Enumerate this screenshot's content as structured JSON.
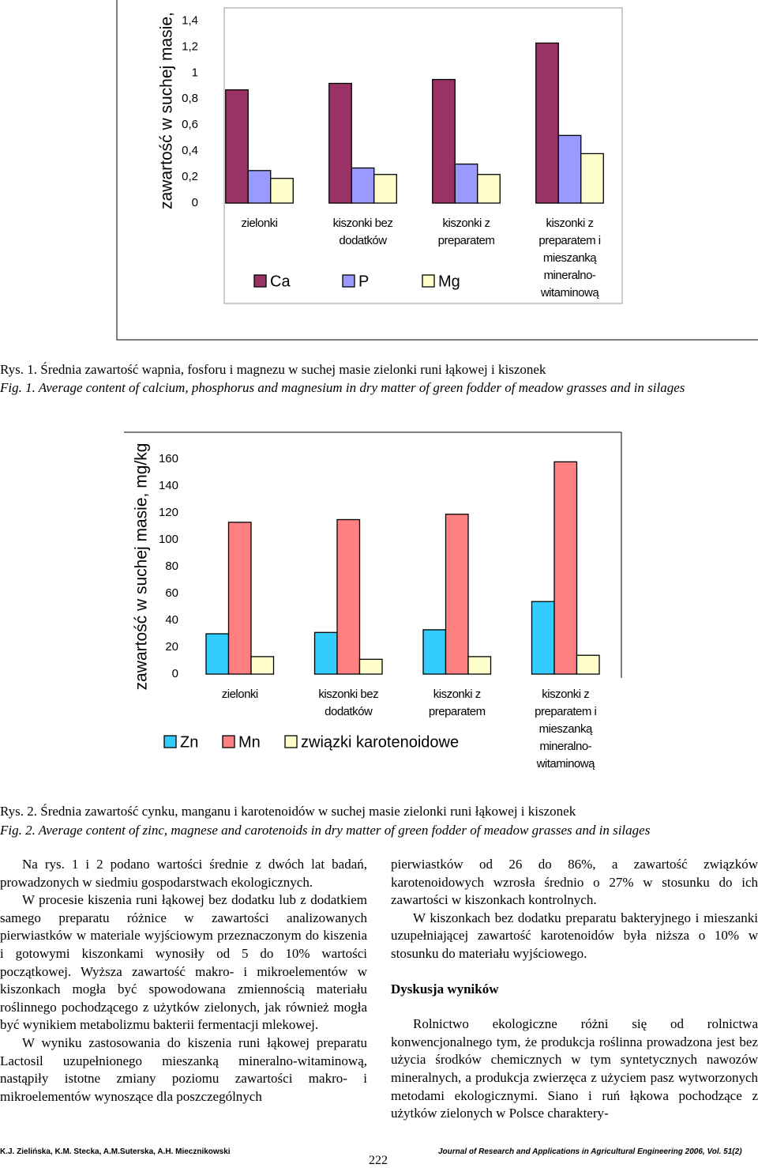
{
  "chart_data": [
    {
      "type": "bar",
      "y_label": "zawartość w suchej masie,",
      "categories": [
        "zielonki",
        "kiszonki bez dodatków",
        "kiszonki z preparatem",
        "kiszonki z preparatem i mieszanką mineralno-witaminową"
      ],
      "series": [
        {
          "name": "Ca",
          "color": "#993366",
          "values": [
            0.87,
            0.92,
            0.95,
            1.23
          ]
        },
        {
          "name": "P",
          "color": "#9999ff",
          "values": [
            0.25,
            0.27,
            0.3,
            0.52
          ]
        },
        {
          "name": "Mg",
          "color": "#ffffcc",
          "values": [
            0.19,
            0.22,
            0.22,
            0.38
          ]
        }
      ],
      "ylim": [
        0,
        1.5
      ],
      "yticks": [
        0,
        {
          "value": 0.2,
          "label": "0,2"
        },
        {
          "value": 0.4,
          "label": "0,4"
        },
        {
          "value": 0.6,
          "label": "0,6"
        },
        {
          "value": 0.8,
          "label": "0,8"
        },
        1,
        {
          "value": 1.2,
          "label": "1,2"
        },
        {
          "value": 1.4,
          "label": "1,4"
        }
      ],
      "grid": false
    },
    {
      "type": "bar",
      "y_label": "zawartość w suchej masie, mg/kg",
      "categories": [
        "zielonki",
        "kiszonki bez dodatków",
        "kiszonki z preparatem",
        "kiszonki z preparatem i mieszanką mineralno-witaminową"
      ],
      "series": [
        {
          "name": "Zn",
          "color": "#33ccff",
          "values": [
            30,
            31,
            33,
            54
          ]
        },
        {
          "name": "Mn",
          "color": "#ff8080",
          "values": [
            113,
            115,
            119,
            158
          ]
        },
        {
          "name": "związki karotenoidowe",
          "color": "#ffffcc",
          "values": [
            13,
            11,
            13,
            14
          ]
        }
      ],
      "ylim": [
        0,
        180
      ],
      "yticks": [
        0,
        20,
        40,
        60,
        80,
        100,
        120,
        140,
        160
      ],
      "grid": false
    }
  ],
  "captions": [
    "Rys. 1. Średnia zawartość wapnia, fosforu i magnezu w suchej masie zielonki runi łąkowej i kiszonek",
    "Fig. 1. Average content of calcium, phosphorus and magnesium in dry matter of green fodder of meadow grasses and in silages",
    "Rys. 2. Średnia zawartość cynku, manganu i karotenoidów w suchej masie zielonki runi łąkowej i kiszonek",
    "Fig. 2. Average content of zinc, magnese and carotenoids in dry matter of green fodder of meadow grasses and in silages"
  ],
  "left_column": [
    "Na rys. 1 i 2 podano wartości średnie z dwóch lat badań, prowadzonych w siedmiu gospodarstwach ekologicznych.",
    "W procesie kiszenia runi łąkowej bez dodatku lub z dodatkiem samego preparatu różnice w zawartości analizowanych pierwiastków w materiale wyjściowym przeznaczonym do kiszenia i gotowymi kiszonkami wynosiły od 5 do 10% wartości początkowej. Wyższa zawartość makro- i mikroelementów w kiszonkach mogła być spowodowana zmiennością materiału roślinnego pochodzącego z użytków zielonych, jak również mogła być wynikiem metabolizmu bakterii fermentacji mlekowej.",
    "W wyniku zastosowania do kiszenia runi łąkowej preparatu Lactosil uzupełnionego mieszanką mineralno-witaminową, nastąpiły istotne zmiany poziomu zawartości makro- i mikroelementów wynoszące dla poszczególnych"
  ],
  "right_column": {
    "paragraphs": [
      "pierwiastków od 26 do 86%, a zawartość związków karotenoidowych wzrosła średnio o 27% w stosunku do ich zawartości w kiszonkach kontrolnych.",
      "W kiszonkach bez dodatku preparatu bakteryjnego i mieszanki uzupełniającej zawartość karotenoidów była niższa o 10% w stosunku do materiału wyjściowego."
    ],
    "heading": "Dyskusja wyników",
    "paragraphs_after": [
      "Rolnictwo ekologiczne różni się od rolnictwa konwencjonalnego tym, że produkcja roślinna prowadzona jest bez użycia środków chemicznych w tym syntetycznych nawozów mineralnych, a produkcja zwierzęca z użyciem pasz wytworzonych metodami ekologicznymi. Siano i ruń łąkowa pochodzące z użytków zielonych w Polsce charaktery-"
    ]
  },
  "footer": {
    "authors": "K.J. Zielińska, K.M. Stecka, A.M.Suterska, A.H. Miecznikowski",
    "page": "222",
    "journal": "Journal of Research and Applications in Agricultural Engineering 2006, Vol. 51(2)"
  }
}
